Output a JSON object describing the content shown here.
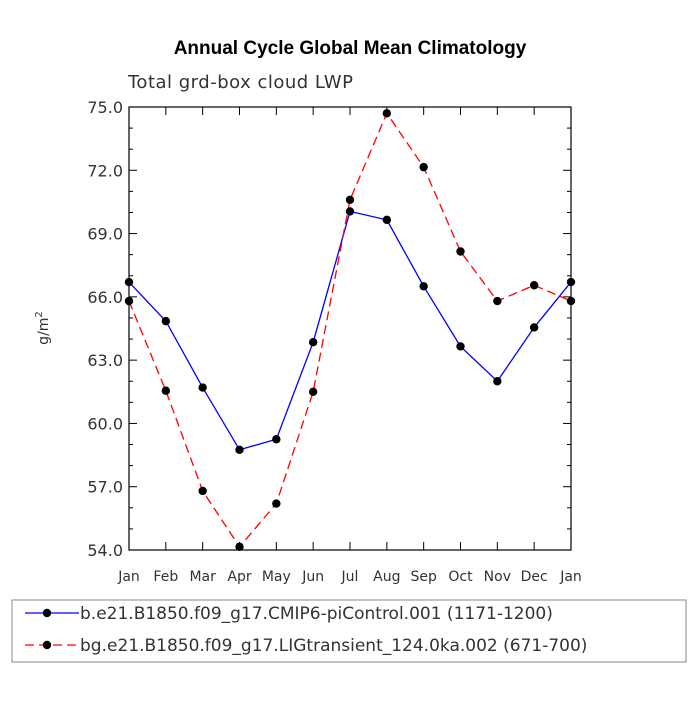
{
  "chart_data": {
    "type": "line",
    "title": "Annual Cycle Global Mean Climatology",
    "subtitle": "Total grd-box cloud LWP",
    "xlabel": "",
    "ylabel": "g/m",
    "ylabel_sup": "2",
    "categories": [
      "Jan",
      "Feb",
      "Mar",
      "Apr",
      "May",
      "Jun",
      "Jul",
      "Aug",
      "Sep",
      "Oct",
      "Nov",
      "Dec",
      "Jan"
    ],
    "ylim": [
      54.0,
      75.0
    ],
    "yticks": [
      54.0,
      57.0,
      60.0,
      63.0,
      66.0,
      69.0,
      72.0,
      75.0
    ],
    "ytick_labels": [
      "54.0",
      "57.0",
      "60.0",
      "63.0",
      "66.0",
      "69.0",
      "72.0",
      "75.0"
    ],
    "yminor_step": 1.0,
    "grid": false,
    "legend_position": "bottom",
    "series": [
      {
        "name": "b.e21.B1850.f09_g17.CMIP6-piControl.001 (1171-1200)",
        "color": "#0000ff",
        "dash": "solid",
        "values": [
          66.7,
          64.85,
          61.7,
          58.75,
          59.25,
          63.85,
          70.05,
          69.65,
          66.5,
          63.65,
          62.0,
          64.55,
          66.7
        ]
      },
      {
        "name": "bg.e21.B1850.f09_g17.LIGtransient_124.0ka.002 (671-700)",
        "color": "#ff0000",
        "dash": "dashed",
        "values": [
          65.8,
          61.55,
          56.8,
          54.15,
          56.2,
          61.5,
          70.6,
          74.7,
          72.15,
          68.15,
          65.8,
          66.55,
          65.8
        ]
      }
    ]
  }
}
